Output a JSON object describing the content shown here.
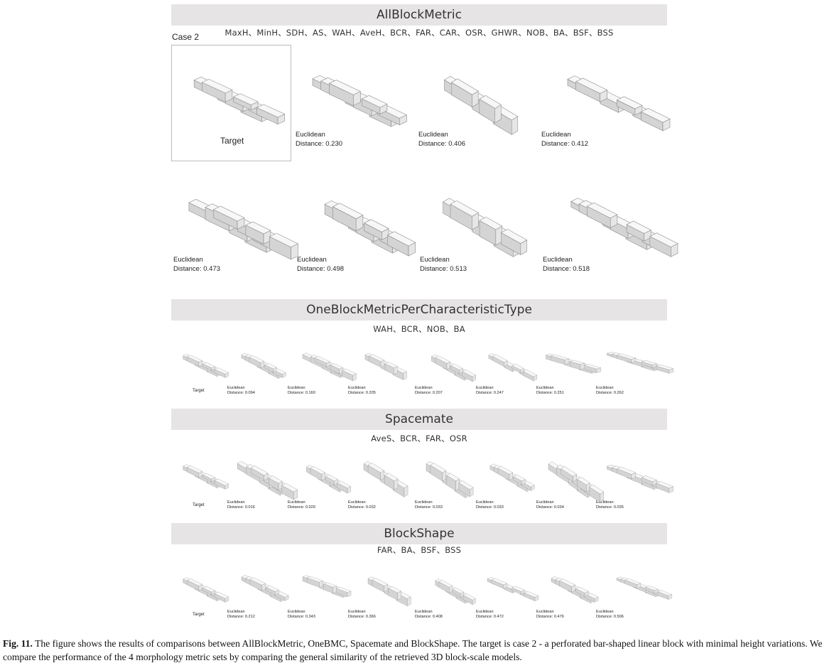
{
  "figure": {
    "case_label": "Case 2",
    "target_label": "Target",
    "result_line1": "Euclidean",
    "sections": [
      {
        "title": "AllBlockMetric",
        "metrics": "MaxH、MinH、SDH、AS、WAH、AveH、BCR、FAR、CAR、OSR、GHWR、NOB、BA、BSF、BSS",
        "distances": [
          "Distance: 0.230",
          "Distance: 0.406",
          "Distance: 0.412",
          "Distance: 0.473",
          "Distance: 0.498",
          "Distance: 0.513",
          "Distance: 0.518"
        ]
      },
      {
        "title": "OneBlockMetricPerCharacteristicType",
        "metrics": "WAH、BCR、NOB、BA",
        "distances": [
          "Distance: 0.094",
          "Distance: 0.160",
          "Distance: 0.205",
          "Distance: 0.207",
          "Distance: 0.247",
          "Distance: 0.251",
          "Distance: 0.262"
        ]
      },
      {
        "title": "Spacemate",
        "metrics": "AveS、BCR、FAR、OSR",
        "distances": [
          "Distance: 0.016",
          "Distance: 0.029",
          "Distance: 0.032",
          "Distance: 0.033",
          "Distance: 0.033",
          "Distance: 0.034",
          "Distance: 0.035"
        ]
      },
      {
        "title": "BlockShape",
        "metrics": "FAR、BA、BSF、BSS",
        "distances": [
          "Distance: 0.212",
          "Distance: 0.343",
          "Distance: 0.366",
          "Distance: 0.408",
          "Distance: 0.472",
          "Distance: 0.476",
          "Distance: 0.506"
        ]
      }
    ]
  },
  "caption": {
    "label": "Fig. 11.",
    "text": "The figure shows the results of comparisons between AllBlockMetric, OneBMC, Spacemate and BlockShape. The target is case 2 - a perforated bar-shaped linear block with minimal height variations. We compare the performance of the 4 morphology metric sets by comparing the general similarity of the retrieved 3D block-scale models."
  },
  "colors": {
    "band": "#e7e4e6",
    "model_top": "#f7f7f7",
    "model_left": "#d4d4d4",
    "model_right": "#e6e6e6",
    "model_edge": "#8a8a8a"
  }
}
